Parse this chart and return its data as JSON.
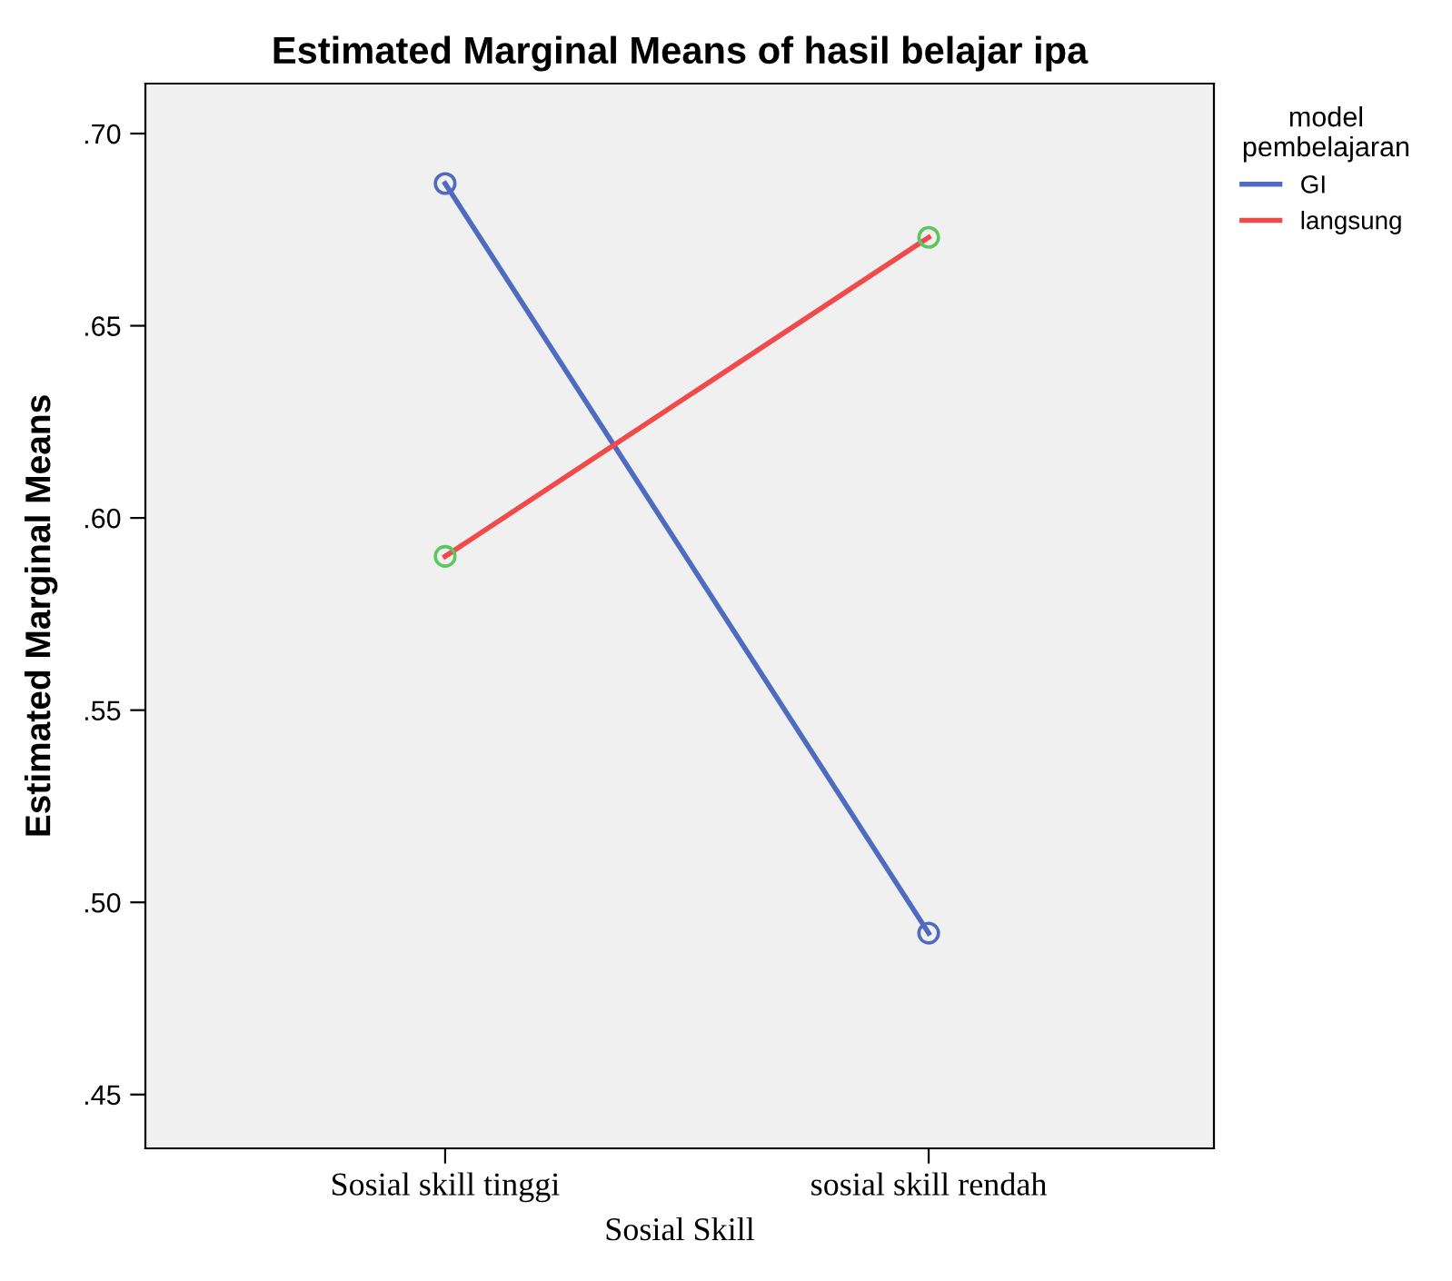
{
  "chart_data": {
    "type": "line",
    "title": "Estimated Marginal Means of hasil belajar ipa",
    "xlabel": "Sosial Skill",
    "ylabel": "Estimated Marginal Means",
    "legend_title": "model pembelajaran",
    "legend": "top right",
    "marker": "circle",
    "grid": false,
    "categories": [
      "Sosial skill tinggi",
      "sosial skill rendah"
    ],
    "series": [
      {
        "name": "GI",
        "color": "#4f6bbf",
        "colors": [
          "#4f6bbf",
          "#4f6bbf"
        ],
        "values": [
          0.687,
          0.492
        ]
      },
      {
        "name": "langsung",
        "color": "#f04a4a",
        "colors": [
          "#5cc75c",
          "#5cc75c"
        ],
        "values": [
          0.59,
          0.673
        ]
      }
    ],
    "ylim": [
      0.436,
      0.713
    ],
    "yticks": [
      {
        "value": 0.45,
        "label": ".45"
      },
      {
        "value": 0.5,
        "label": ".50"
      },
      {
        "value": 0.55,
        "label": ".55"
      },
      {
        "value": 0.6,
        "label": ".60"
      },
      {
        "value": 0.65,
        "label": ".65"
      },
      {
        "value": 0.7,
        "label": ".70"
      }
    ]
  }
}
